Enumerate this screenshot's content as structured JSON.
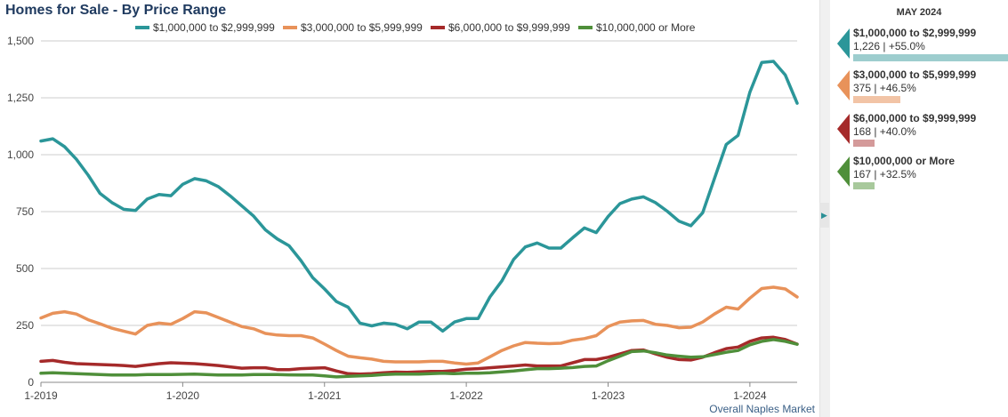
{
  "chart_data": {
    "type": "line",
    "title": "Homes for Sale - By Price Range",
    "x_labels": [
      "1-2019",
      "1-2020",
      "1-2021",
      "1-2022",
      "1-2023",
      "1-2024"
    ],
    "x_start": "1-2019",
    "x_end": "5-2024",
    "ylim": [
      0,
      1500
    ],
    "yticks": [
      0,
      250,
      500,
      750,
      1000,
      1250,
      1500
    ],
    "ytick_labels": [
      "0",
      "250",
      "500",
      "750",
      "1,000",
      "1,250",
      "1,500"
    ],
    "grid": true,
    "legend_position": "top",
    "footer": "Overall Naples Market",
    "series": [
      {
        "name": "$1,000,000 to $2,999,999",
        "color": "#2b9699",
        "values": [
          1060,
          1070,
          1035,
          980,
          910,
          830,
          790,
          760,
          755,
          805,
          825,
          820,
          870,
          895,
          885,
          860,
          820,
          775,
          730,
          670,
          630,
          600,
          535,
          460,
          410,
          355,
          330,
          260,
          248,
          260,
          255,
          235,
          265,
          265,
          225,
          265,
          280,
          280,
          375,
          445,
          540,
          595,
          612,
          590,
          590,
          635,
          678,
          658,
          728,
          785,
          805,
          815,
          790,
          752,
          708,
          688,
          745,
          895,
          1045,
          1085,
          1275,
          1405,
          1410,
          1350,
          1226
        ]
      },
      {
        "name": "$3,000,000 to $5,999,999",
        "color": "#e8925a",
        "values": [
          283,
          303,
          310,
          300,
          275,
          257,
          238,
          225,
          212,
          250,
          260,
          255,
          280,
          310,
          305,
          285,
          265,
          245,
          235,
          215,
          208,
          205,
          205,
          195,
          168,
          140,
          115,
          108,
          102,
          92,
          90,
          90,
          90,
          92,
          92,
          85,
          80,
          85,
          112,
          140,
          160,
          175,
          172,
          170,
          172,
          185,
          192,
          205,
          245,
          265,
          270,
          272,
          255,
          250,
          240,
          242,
          265,
          300,
          330,
          322,
          370,
          412,
          418,
          410,
          375
        ]
      },
      {
        "name": "$6,000,000 to $9,999,999",
        "color": "#a52a2a",
        "values": [
          92,
          96,
          88,
          82,
          80,
          78,
          76,
          74,
          70,
          76,
          82,
          86,
          84,
          82,
          78,
          74,
          68,
          62,
          64,
          64,
          56,
          56,
          60,
          62,
          64,
          50,
          38,
          36,
          38,
          42,
          45,
          44,
          46,
          48,
          48,
          52,
          58,
          60,
          64,
          68,
          72,
          76,
          72,
          72,
          72,
          86,
          100,
          100,
          110,
          125,
          140,
          142,
          125,
          110,
          100,
          98,
          110,
          130,
          148,
          155,
          180,
          195,
          198,
          188,
          168
        ]
      },
      {
        "name": "$10,000,000 or More",
        "color": "#4f8f3a",
        "values": [
          40,
          42,
          40,
          38,
          36,
          34,
          32,
          32,
          32,
          34,
          34,
          34,
          35,
          36,
          34,
          32,
          32,
          32,
          34,
          34,
          34,
          33,
          32,
          32,
          28,
          24,
          26,
          28,
          30,
          34,
          36,
          36,
          36,
          38,
          40,
          38,
          40,
          40,
          42,
          46,
          50,
          55,
          60,
          60,
          62,
          65,
          70,
          72,
          95,
          115,
          135,
          138,
          130,
          120,
          115,
          110,
          112,
          122,
          132,
          140,
          165,
          180,
          188,
          180,
          167
        ]
      }
    ]
  },
  "panel": {
    "title": "MAY 2024",
    "items": [
      {
        "name": "$1,000,000 to $2,999,999",
        "value": "1,226 | +55.0%",
        "color": "#2b9699",
        "bar_color": "#9dcdce",
        "level": 1226
      },
      {
        "name": "$3,000,000 to $5,999,999",
        "value": "375 | +46.5%",
        "color": "#e8925a",
        "bar_color": "#f2c4a6",
        "level": 375
      },
      {
        "name": "$6,000,000 to $9,999,999",
        "value": "168 | +40.0%",
        "color": "#a52a2a",
        "bar_color": "#d49a9a",
        "level": 168
      },
      {
        "name": "$10,000,000 or More",
        "value": "167 | +32.5%",
        "color": "#4f8f3a",
        "bar_color": "#a8c99c",
        "level": 167
      }
    ]
  }
}
